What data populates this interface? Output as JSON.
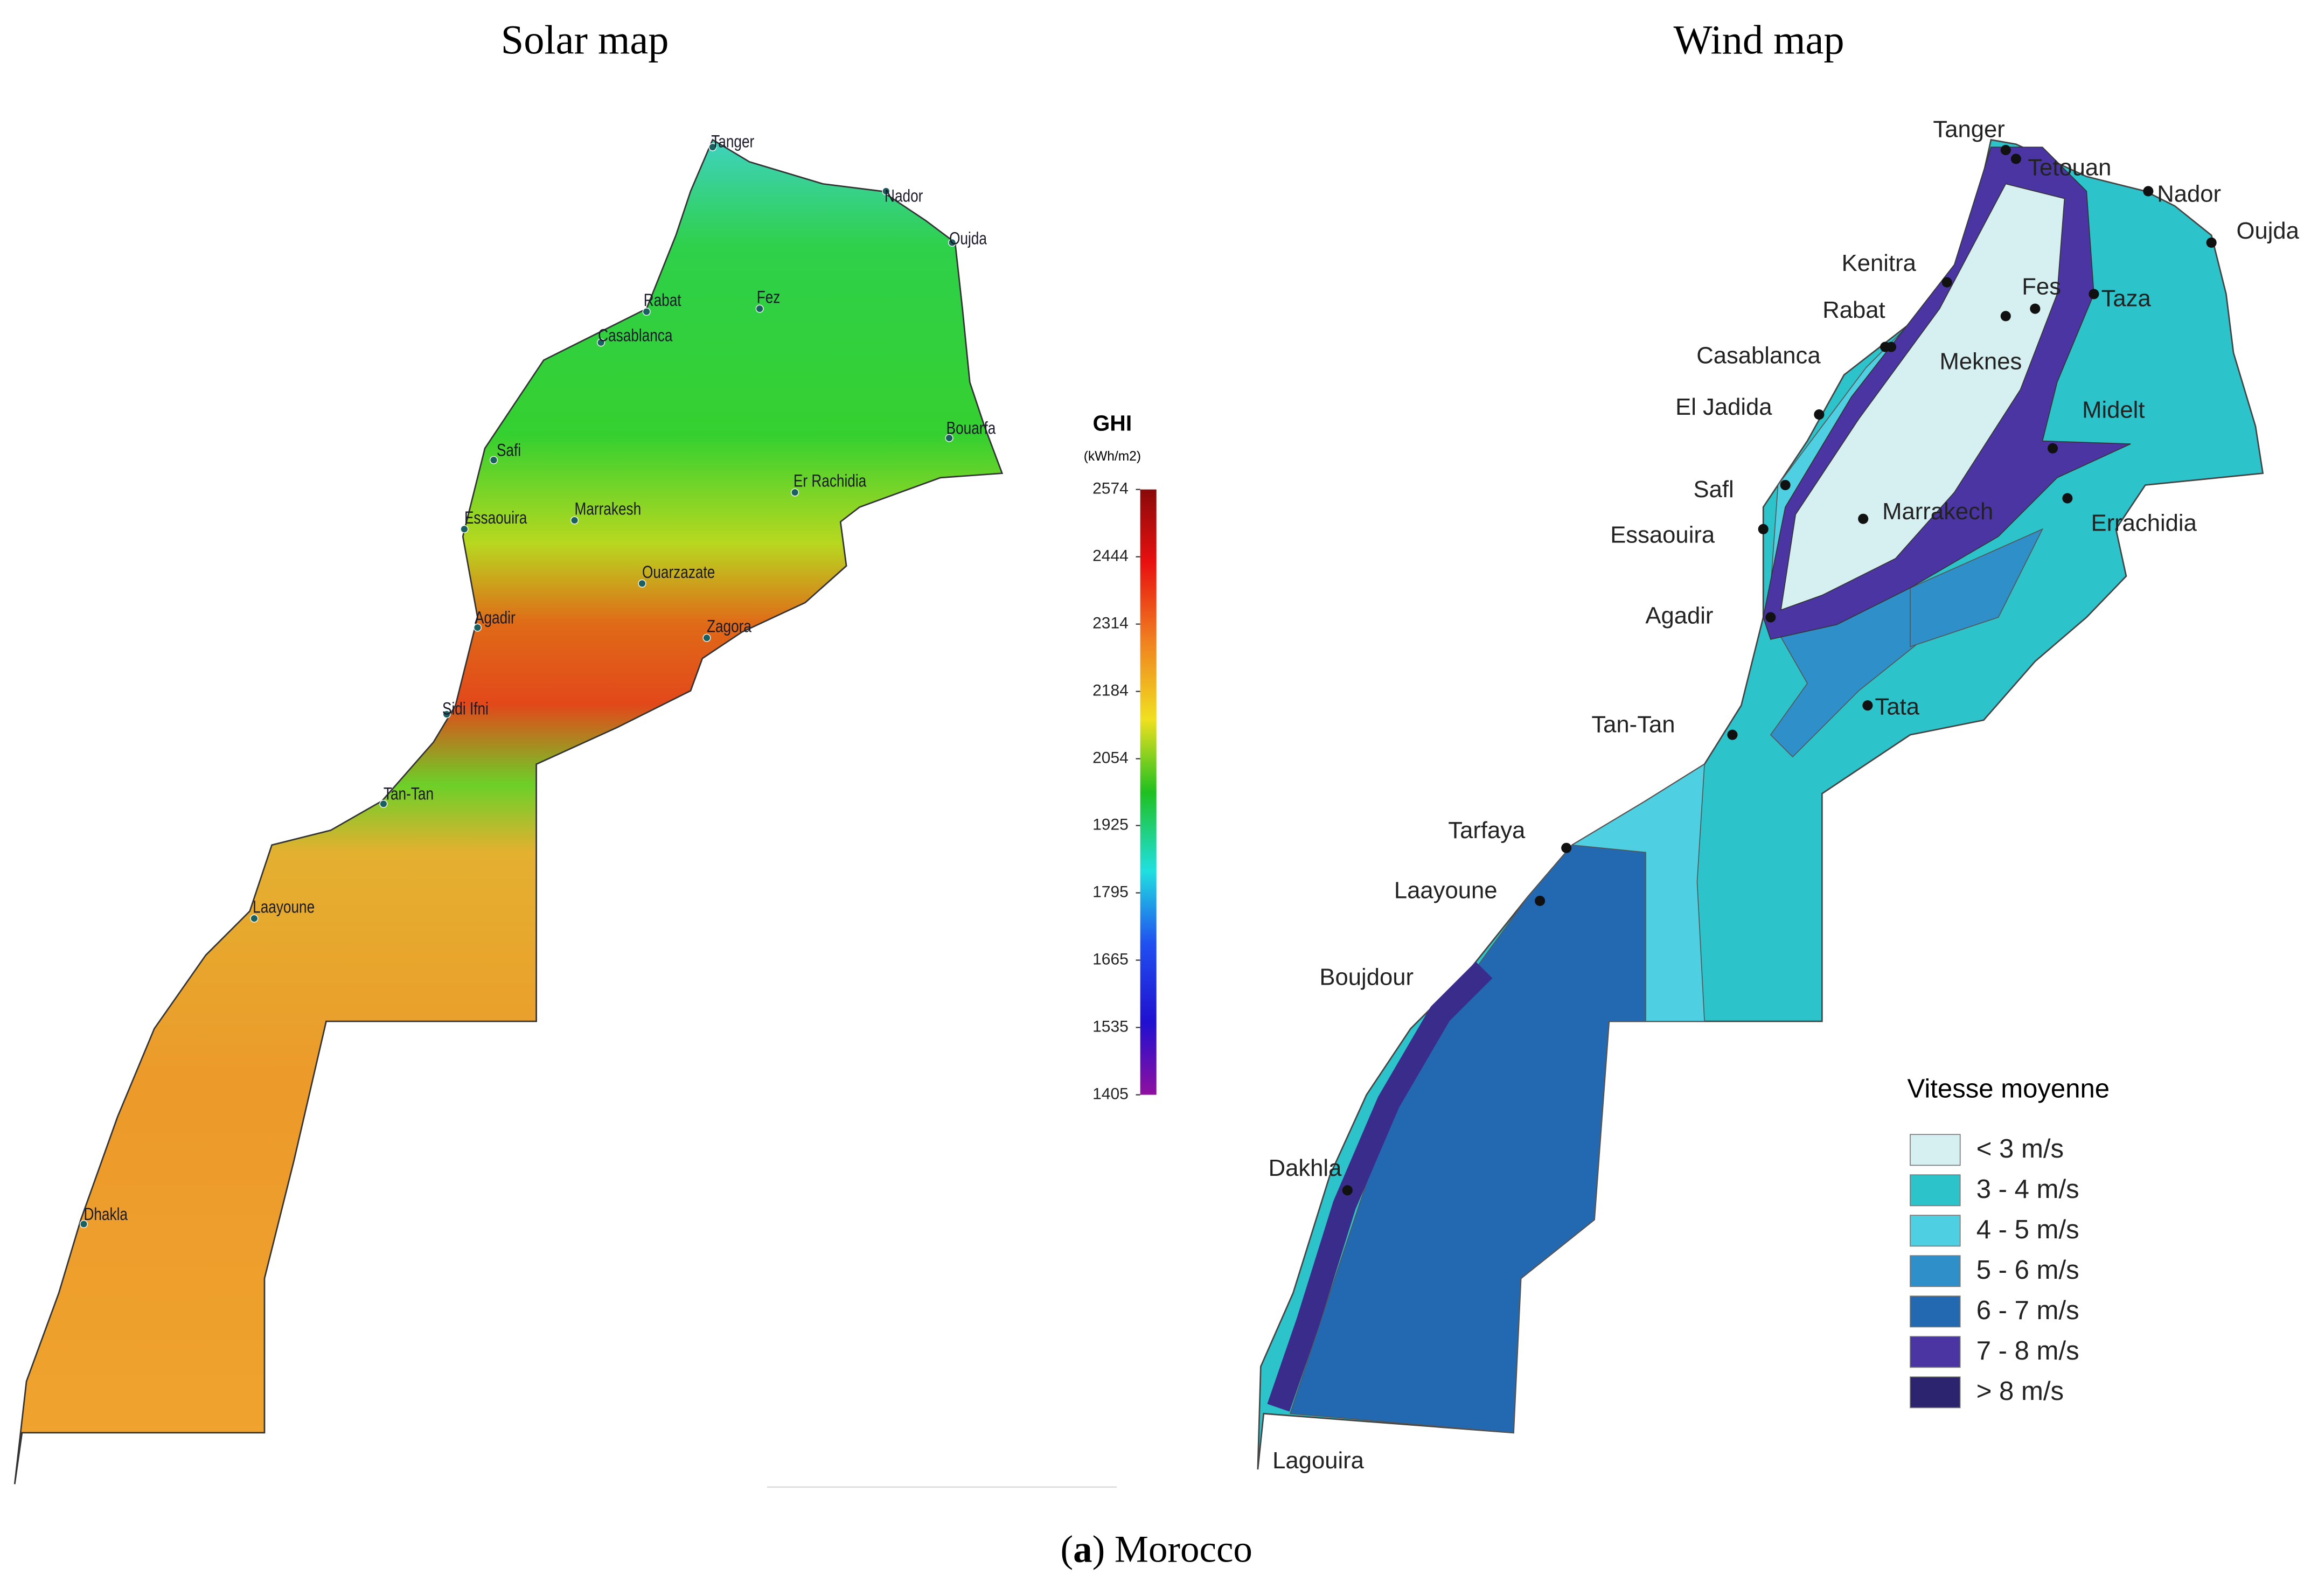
{
  "solar_map": {
    "title": "Solar map",
    "cities": [
      "Tanger",
      "Nador",
      "Oujda",
      "Rabat",
      "Fez",
      "Casablanca",
      "Bouarfa",
      "Safi",
      "Er Rachidia",
      "Essaouira",
      "Marrakesh",
      "Ouarzazate",
      "Agadir",
      "Zagora",
      "Sidi Ifni",
      "Tan-Tan",
      "Laayoune",
      "Dhakla"
    ],
    "colorbar": {
      "title": "GHI",
      "unit": "(kWh/m2)",
      "range": [
        1405,
        2574
      ],
      "ticks": [
        2574,
        2444,
        2314,
        2184,
        2054,
        1925,
        1795,
        1665,
        1535,
        1405
      ]
    }
  },
  "wind_map": {
    "title": "Wind map",
    "cities": [
      "Tanger",
      "Tetouan",
      "Nador",
      "Oujda",
      "Kenitra",
      "Fes",
      "Taza",
      "Rabat",
      "Casablanca",
      "Meknes",
      "El Jadida",
      "Midelt",
      "Safl",
      "Essaouira",
      "Marrakech",
      "Errachidia",
      "Agadir",
      "Tata",
      "Tan-Tan",
      "Tarfaya",
      "Laayoune",
      "Boujdour",
      "Dakhla",
      "Lagouira"
    ],
    "legend": {
      "title": "Vitesse moyenne",
      "entries": [
        {
          "label": "< 3 m/s",
          "color": "#d6eff1"
        },
        {
          "label": "3 - 4 m/s",
          "color": "#2cc3cb"
        },
        {
          "label": "4 - 5 m/s",
          "color": "#4fd0e2"
        },
        {
          "label": "5 - 6 m/s",
          "color": "#2f8fc9"
        },
        {
          "label": "6 - 7 m/s",
          "color": "#2369b1"
        },
        {
          "label": "7 - 8 m/s",
          "color": "#4b35a2"
        },
        {
          "label": "> 8 m/s",
          "color": "#2d2470"
        }
      ]
    }
  },
  "caption": {
    "open": "(",
    "label": "a",
    "text": ") Morocco"
  }
}
